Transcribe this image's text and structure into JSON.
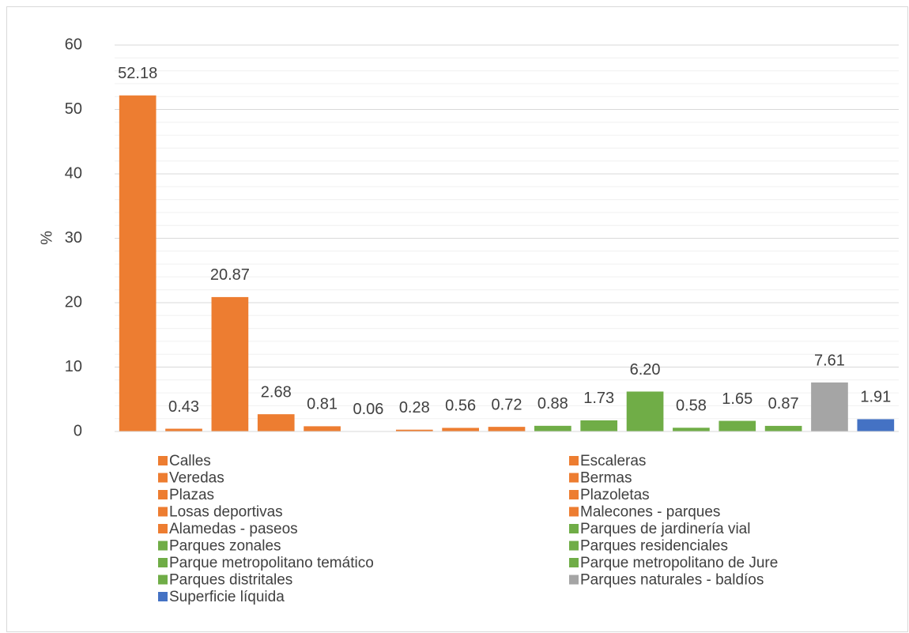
{
  "chart_data": {
    "type": "bar",
    "y_label": "%",
    "categories": [
      "Calles",
      "Escaleras",
      "Veredas",
      "Bermas",
      "Plazas",
      "Plazoletas",
      "Losas deportivas",
      "Malecones - parques",
      "Alamedas - paseos",
      "Parques de jardinería vial",
      "Parques zonales",
      "Parques residenciales",
      "Parque metropolitano temático",
      "Parque metropolitano de Jure",
      "Parques distritales",
      "Parques naturales - baldíos",
      "Superficie líquida"
    ],
    "values": [
      52.18,
      0.43,
      20.87,
      2.68,
      0.81,
      0.06,
      0.28,
      0.56,
      0.72,
      0.88,
      1.73,
      6.2,
      0.58,
      1.65,
      0.87,
      7.61,
      1.91
    ],
    "value_labels": [
      "52.18",
      "0.43",
      "20.87",
      "2.68",
      "0.81",
      "0.06",
      "0.28",
      "0.56",
      "0.72",
      "0.88",
      "1.73",
      "6.20",
      "0.58",
      "1.65",
      "0.87",
      "7.61",
      "1.91"
    ],
    "colors": [
      "#ed7d31",
      "#ed7d31",
      "#ed7d31",
      "#ed7d31",
      "#ed7d31",
      "#ed7d31",
      "#ed7d31",
      "#ed7d31",
      "#ed7d31",
      "#70ad47",
      "#70ad47",
      "#70ad47",
      "#70ad47",
      "#70ad47",
      "#70ad47",
      "#a5a5a5",
      "#4472c4"
    ],
    "ylim": [
      0,
      60
    ],
    "yticks": [
      0,
      10,
      20,
      30,
      40,
      50,
      60
    ],
    "minor_yticks": [
      2,
      4,
      6,
      8,
      12,
      14,
      16,
      18,
      22,
      24,
      26,
      28,
      32,
      34,
      36,
      38,
      42,
      44,
      46,
      48,
      52,
      54,
      56,
      58
    ],
    "grid": true
  }
}
